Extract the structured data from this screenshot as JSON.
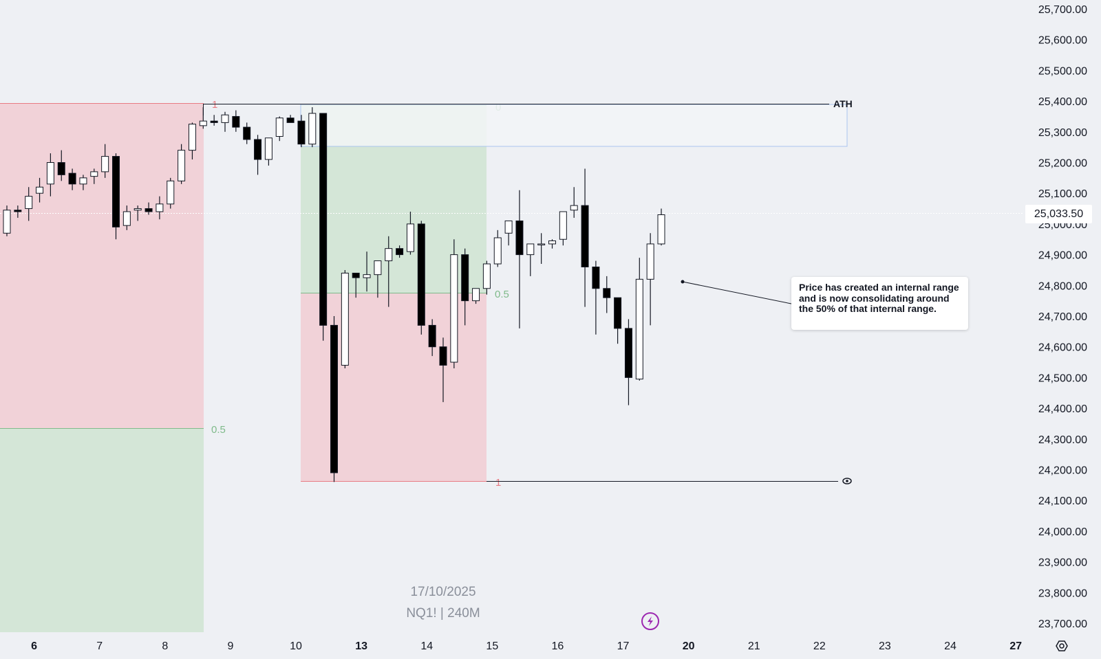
{
  "chart_data": {
    "type": "candlestick",
    "symbol": "NQ1! | 240M",
    "date": "17/10/2025",
    "current_price_label": "25,033.50",
    "current_price": 25033.5,
    "ylim": [
      23650,
      25730
    ],
    "y_ticks": [
      {
        "value": 25700,
        "label": "25,700.00"
      },
      {
        "value": 25600,
        "label": "25,600.00"
      },
      {
        "value": 25500,
        "label": "25,500.00"
      },
      {
        "value": 25400,
        "label": "25,400.00"
      },
      {
        "value": 25300,
        "label": "25,300.00"
      },
      {
        "value": 25200,
        "label": "25,200.00"
      },
      {
        "value": 25100,
        "label": "25,100.00"
      },
      {
        "value": 25000,
        "label": "25,000.00"
      },
      {
        "value": 24900,
        "label": "24,900.00"
      },
      {
        "value": 24800,
        "label": "24,800.00"
      },
      {
        "value": 24700,
        "label": "24,700.00"
      },
      {
        "value": 24600,
        "label": "24,600.00"
      },
      {
        "value": 24500,
        "label": "24,500.00"
      },
      {
        "value": 24400,
        "label": "24,400.00"
      },
      {
        "value": 24300,
        "label": "24,300.00"
      },
      {
        "value": 24200,
        "label": "24,200.00"
      },
      {
        "value": 24100,
        "label": "24,100.00"
      },
      {
        "value": 24000,
        "label": "24,000.00"
      },
      {
        "value": 23900,
        "label": "23,900.00"
      },
      {
        "value": 23800,
        "label": "23,800.00"
      },
      {
        "value": 23700,
        "label": "23,700.00"
      }
    ],
    "x_ticks": [
      {
        "label": "6",
        "slot": 2.5,
        "bold": true
      },
      {
        "label": "7",
        "slot": 8.5,
        "bold": false
      },
      {
        "label": "8",
        "slot": 14.5,
        "bold": false
      },
      {
        "label": "9",
        "slot": 20.5,
        "bold": false
      },
      {
        "label": "10",
        "slot": 26.5,
        "bold": false
      },
      {
        "label": "13",
        "slot": 32.5,
        "bold": true
      },
      {
        "label": "14",
        "slot": 38.5,
        "bold": false
      },
      {
        "label": "15",
        "slot": 44.5,
        "bold": false
      },
      {
        "label": "16",
        "slot": 50.5,
        "bold": false
      },
      {
        "label": "17",
        "slot": 56.5,
        "bold": false
      },
      {
        "label": "20",
        "slot": 62.5,
        "bold": true
      },
      {
        "label": "21",
        "slot": 68.5,
        "bold": false
      },
      {
        "label": "22",
        "slot": 74.5,
        "bold": false
      },
      {
        "label": "23",
        "slot": 80.5,
        "bold": false
      },
      {
        "label": "24",
        "slot": 86.5,
        "bold": false
      },
      {
        "label": "27",
        "slot": 92.5,
        "bold": true
      }
    ],
    "candles": [
      {
        "o": 24970,
        "h": 25060,
        "l": 24960,
        "c": 25045
      },
      {
        "o": 25045,
        "h": 25060,
        "l": 25020,
        "c": 25040
      },
      {
        "o": 25050,
        "h": 25120,
        "l": 25010,
        "c": 25090
      },
      {
        "o": 25100,
        "h": 25150,
        "l": 25070,
        "c": 25120
      },
      {
        "o": 25130,
        "h": 25230,
        "l": 25090,
        "c": 25200
      },
      {
        "o": 25200,
        "h": 25240,
        "l": 25140,
        "c": 25160
      },
      {
        "o": 25165,
        "h": 25180,
        "l": 25110,
        "c": 25130
      },
      {
        "o": 25130,
        "h": 25160,
        "l": 25110,
        "c": 25150
      },
      {
        "o": 25155,
        "h": 25180,
        "l": 25130,
        "c": 25170
      },
      {
        "o": 25170,
        "h": 25260,
        "l": 25150,
        "c": 25220
      },
      {
        "o": 25220,
        "h": 25230,
        "l": 24950,
        "c": 24990
      },
      {
        "o": 24995,
        "h": 25060,
        "l": 24980,
        "c": 25040
      },
      {
        "o": 25045,
        "h": 25060,
        "l": 25010,
        "c": 25050
      },
      {
        "o": 25050,
        "h": 25070,
        "l": 25030,
        "c": 25040
      },
      {
        "o": 25040,
        "h": 25090,
        "l": 25015,
        "c": 25065
      },
      {
        "o": 25065,
        "h": 25150,
        "l": 25050,
        "c": 25140
      },
      {
        "o": 25140,
        "h": 25260,
        "l": 25130,
        "c": 25240
      },
      {
        "o": 25240,
        "h": 25330,
        "l": 25210,
        "c": 25325
      },
      {
        "o": 25320,
        "h": 25380,
        "l": 25310,
        "c": 25335
      },
      {
        "o": 25335,
        "h": 25355,
        "l": 25320,
        "c": 25330
      },
      {
        "o": 25330,
        "h": 25365,
        "l": 25300,
        "c": 25355
      },
      {
        "o": 25350,
        "h": 25370,
        "l": 25300,
        "c": 25315
      },
      {
        "o": 25315,
        "h": 25330,
        "l": 25260,
        "c": 25275
      },
      {
        "o": 25275,
        "h": 25290,
        "l": 25160,
        "c": 25210
      },
      {
        "o": 25210,
        "h": 25280,
        "l": 25190,
        "c": 25280
      },
      {
        "o": 25285,
        "h": 25350,
        "l": 25270,
        "c": 25345
      },
      {
        "o": 25345,
        "h": 25355,
        "l": 25330,
        "c": 25330
      },
      {
        "o": 25335,
        "h": 25355,
        "l": 25250,
        "c": 25260
      },
      {
        "o": 25260,
        "h": 25380,
        "l": 25250,
        "c": 25360
      },
      {
        "o": 25360,
        "h": 25360,
        "l": 24620,
        "c": 24670
      },
      {
        "o": 24670,
        "h": 24700,
        "l": 24160,
        "c": 24190
      },
      {
        "o": 24540,
        "h": 24850,
        "l": 24530,
        "c": 24840
      },
      {
        "o": 24840,
        "h": 24840,
        "l": 24760,
        "c": 24825
      },
      {
        "o": 24825,
        "h": 24910,
        "l": 24780,
        "c": 24835
      },
      {
        "o": 24835,
        "h": 24880,
        "l": 24760,
        "c": 24880
      },
      {
        "o": 24880,
        "h": 24960,
        "l": 24730,
        "c": 24920
      },
      {
        "o": 24920,
        "h": 24930,
        "l": 24890,
        "c": 24900
      },
      {
        "o": 24910,
        "h": 25040,
        "l": 24900,
        "c": 25000
      },
      {
        "o": 25000,
        "h": 25010,
        "l": 24640,
        "c": 24670
      },
      {
        "o": 24670,
        "h": 24690,
        "l": 24570,
        "c": 24600
      },
      {
        "o": 24600,
        "h": 24630,
        "l": 24420,
        "c": 24540
      },
      {
        "o": 24550,
        "h": 24950,
        "l": 24530,
        "c": 24900
      },
      {
        "o": 24900,
        "h": 24920,
        "l": 24670,
        "c": 24750
      },
      {
        "o": 24750,
        "h": 24780,
        "l": 24740,
        "c": 24790
      },
      {
        "o": 24790,
        "h": 24880,
        "l": 24770,
        "c": 24870
      },
      {
        "o": 24870,
        "h": 24980,
        "l": 24860,
        "c": 24955
      },
      {
        "o": 24970,
        "h": 25005,
        "l": 24930,
        "c": 25010
      },
      {
        "o": 25010,
        "h": 25110,
        "l": 24660,
        "c": 24900
      },
      {
        "o": 24900,
        "h": 24930,
        "l": 24830,
        "c": 24935
      },
      {
        "o": 24935,
        "h": 24970,
        "l": 24870,
        "c": 24935
      },
      {
        "o": 24935,
        "h": 24950,
        "l": 24920,
        "c": 24945
      },
      {
        "o": 24950,
        "h": 25040,
        "l": 24930,
        "c": 25040
      },
      {
        "o": 25045,
        "h": 25120,
        "l": 25020,
        "c": 25060
      },
      {
        "o": 25060,
        "h": 25180,
        "l": 24730,
        "c": 24860
      },
      {
        "o": 24860,
        "h": 24880,
        "l": 24640,
        "c": 24790
      },
      {
        "o": 24790,
        "h": 24830,
        "l": 24710,
        "c": 24760
      },
      {
        "o": 24760,
        "h": 24760,
        "l": 24610,
        "c": 24660
      },
      {
        "o": 24660,
        "h": 24690,
        "l": 24410,
        "c": 24500
      },
      {
        "o": 24495,
        "h": 24890,
        "l": 24490,
        "c": 24820
      },
      {
        "o": 24820,
        "h": 24970,
        "l": 24670,
        "c": 24935
      },
      {
        "o": 24935,
        "h": 25050,
        "l": 24930,
        "c": 25030
      }
    ],
    "annotations": {
      "ath_label": "ATH",
      "fib_left": {
        "top_label": "1",
        "mid_label": "0.5"
      },
      "fib_inner": {
        "top_label": "0",
        "mid_label": "0.5",
        "bottom_label": "1"
      },
      "note": "Price has created an internal range and is now consolidating around the 50% of that internal range."
    }
  }
}
